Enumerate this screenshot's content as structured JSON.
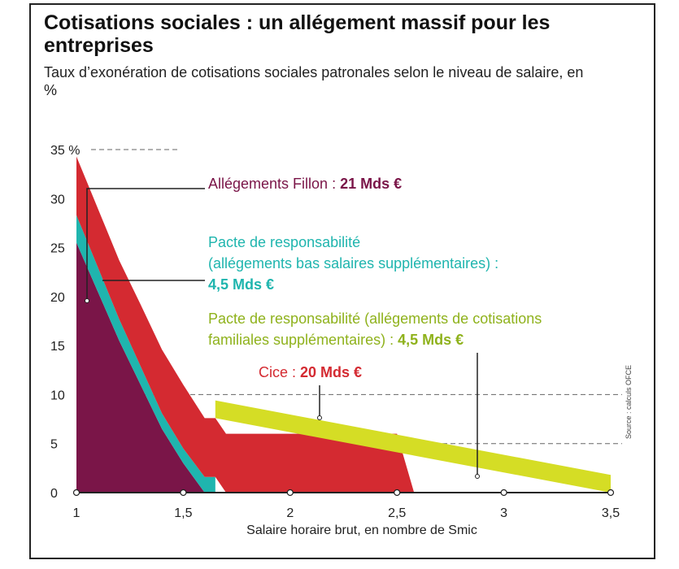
{
  "header": {
    "title": "Cotisations sociales : un allégement massif pour les entreprises",
    "subtitle": "Taux d’exonération de cotisations sociales patronales selon le niveau de salaire, en %"
  },
  "source": "Source : calculs OFCE",
  "colors": {
    "fillon": "#7a1548",
    "pacte_bas": "#1fb5ae",
    "cice": "#d42a31",
    "pacte_fam": "#d5dd25"
  },
  "annotations": {
    "fillon": {
      "text": "Allégements Fillon : ",
      "value": "21 Mds €"
    },
    "pacte_bas": {
      "line1": "Pacte de responsabilité",
      "line2": "(allégements bas salaires supplémentaires) :",
      "value": "4,5 Mds €"
    },
    "pacte_fam": {
      "line1": "Pacte de responsabilité (allégements de cotisations",
      "line2": "familiales supplémentaires) : ",
      "value": "4,5 Mds €"
    },
    "cice": {
      "text": "Cice : ",
      "value": "20 Mds €"
    }
  },
  "chart_data": {
    "type": "area",
    "title": "Cotisations sociales : un allégement massif pour les entreprises",
    "subtitle": "Taux d’exonération de cotisations sociales patronales selon le niveau de salaire, en %",
    "xlabel": "Salaire horaire brut, en nombre de Smic",
    "ylabel": "",
    "xlim": [
      1,
      3.5
    ],
    "ylim": [
      0,
      35
    ],
    "x_ticks": [
      1,
      1.5,
      2,
      2.5,
      3,
      3.5
    ],
    "x_tick_labels": [
      "1",
      "1,5",
      "2",
      "2,5",
      "3",
      "3,5"
    ],
    "y_ticks": [
      0,
      5,
      10,
      15,
      20,
      25,
      30,
      35
    ],
    "y_tick_labels": [
      "0",
      "5",
      "10",
      "15",
      "20",
      "25",
      "30",
      "35 %"
    ],
    "stacked": true,
    "series": [
      {
        "key": "fillon",
        "points": [
          [
            1,
            25.5
          ],
          [
            1.1,
            20.5
          ],
          [
            1.2,
            15.5
          ],
          [
            1.3,
            11
          ],
          [
            1.4,
            6.5
          ],
          [
            1.5,
            3
          ],
          [
            1.6,
            0
          ]
        ]
      },
      {
        "key": "pacte_bas",
        "points": [
          [
            1,
            2.8
          ],
          [
            1.1,
            2.5
          ],
          [
            1.2,
            2.2
          ],
          [
            1.3,
            1.9
          ],
          [
            1.4,
            1.6
          ],
          [
            1.5,
            1.5
          ],
          [
            1.6,
            1.6
          ],
          [
            1.65,
            1.6
          ]
        ]
      },
      {
        "key": "cice",
        "points": [
          [
            1,
            6
          ],
          [
            1.1,
            6
          ],
          [
            1.2,
            6
          ],
          [
            1.3,
            6.3
          ],
          [
            1.4,
            6.5
          ],
          [
            1.5,
            6.5
          ],
          [
            1.6,
            6
          ],
          [
            1.65,
            6
          ],
          [
            1.7,
            6
          ],
          [
            2.5,
            6
          ],
          [
            2.58,
            0
          ]
        ]
      },
      {
        "key": "pacte_fam",
        "points": [
          [
            1.65,
            1.8
          ],
          [
            3.5,
            1.8
          ]
        ]
      }
    ]
  }
}
